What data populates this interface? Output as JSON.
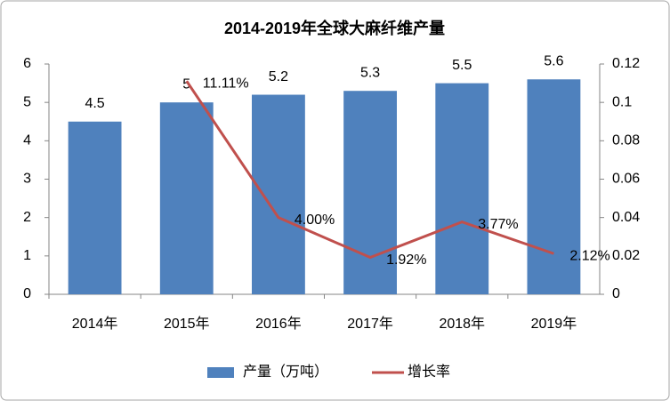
{
  "chart_data": {
    "type": "bar",
    "title": "2014-2019年全球大麻纤维产量",
    "categories": [
      "2014年",
      "2015年",
      "2016年",
      "2017年",
      "2018年",
      "2019年"
    ],
    "series": [
      {
        "name": "产量（万吨）",
        "color": "#4f81bd",
        "type": "bar",
        "values": [
          4.5,
          5,
          5.2,
          5.3,
          5.5,
          5.6
        ]
      },
      {
        "name": "增长率",
        "color": "#c0504d",
        "type": "line",
        "axis": "y2",
        "values": [
          null,
          0.1111,
          0.04,
          0.0192,
          0.0377,
          0.0212
        ],
        "value_labels": [
          null,
          "11.11%",
          "4.00%",
          "1.92%",
          "3.77%",
          "2.12%"
        ]
      }
    ],
    "ylim": [
      0,
      6
    ],
    "yticks": [
      0,
      1,
      2,
      3,
      4,
      5,
      6
    ],
    "y2lim": [
      0,
      0.12
    ],
    "y2ticks": [
      0,
      0.02,
      0.04,
      0.06,
      0.08,
      0.1,
      0.12
    ],
    "grid": false,
    "legend": "bottom"
  }
}
